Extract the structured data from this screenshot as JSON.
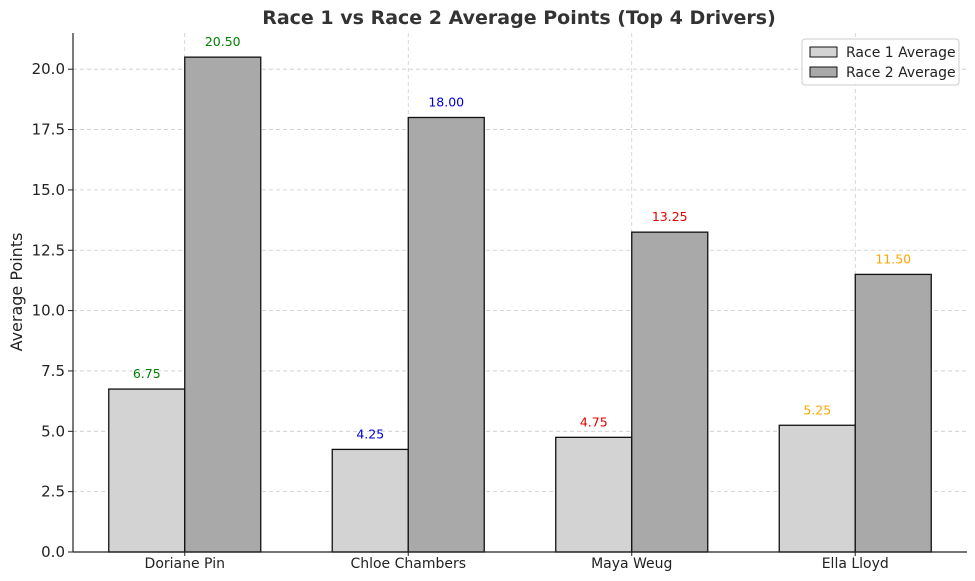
{
  "chart_data": {
    "type": "bar",
    "title": "Race 1 vs Race 2 Average Points (Top 4 Drivers)",
    "xlabel": "",
    "ylabel": "Average Points",
    "categories": [
      "Doriane Pin",
      "Chloe Chambers",
      "Maya Weug",
      "Ella Lloyd"
    ],
    "series": [
      {
        "name": "Race 1 Average",
        "values": [
          6.75,
          4.25,
          4.75,
          5.25
        ],
        "value_labels": [
          "6.75",
          "4.25",
          "4.75",
          "5.25"
        ],
        "color": "#d3d3d3"
      },
      {
        "name": "Race 2 Average",
        "values": [
          20.5,
          18.0,
          13.25,
          11.5
        ],
        "value_labels": [
          "20.50",
          "18.00",
          "13.25",
          "11.50"
        ],
        "color": "#a9a9a9"
      }
    ],
    "label_colors": [
      "#008000",
      "#0000cd",
      "#e60000",
      "#ffa500"
    ],
    "ylim": [
      0,
      21.5
    ],
    "yticks": [
      0,
      2.5,
      5,
      7.5,
      10,
      12.5,
      15,
      17.5,
      20
    ],
    "ytick_labels": [
      "0.0",
      "2.5",
      "5.0",
      "7.5",
      "10.0",
      "12.5",
      "15.0",
      "17.5",
      "20.0"
    ],
    "grid": true,
    "legend_position": "top-right"
  }
}
